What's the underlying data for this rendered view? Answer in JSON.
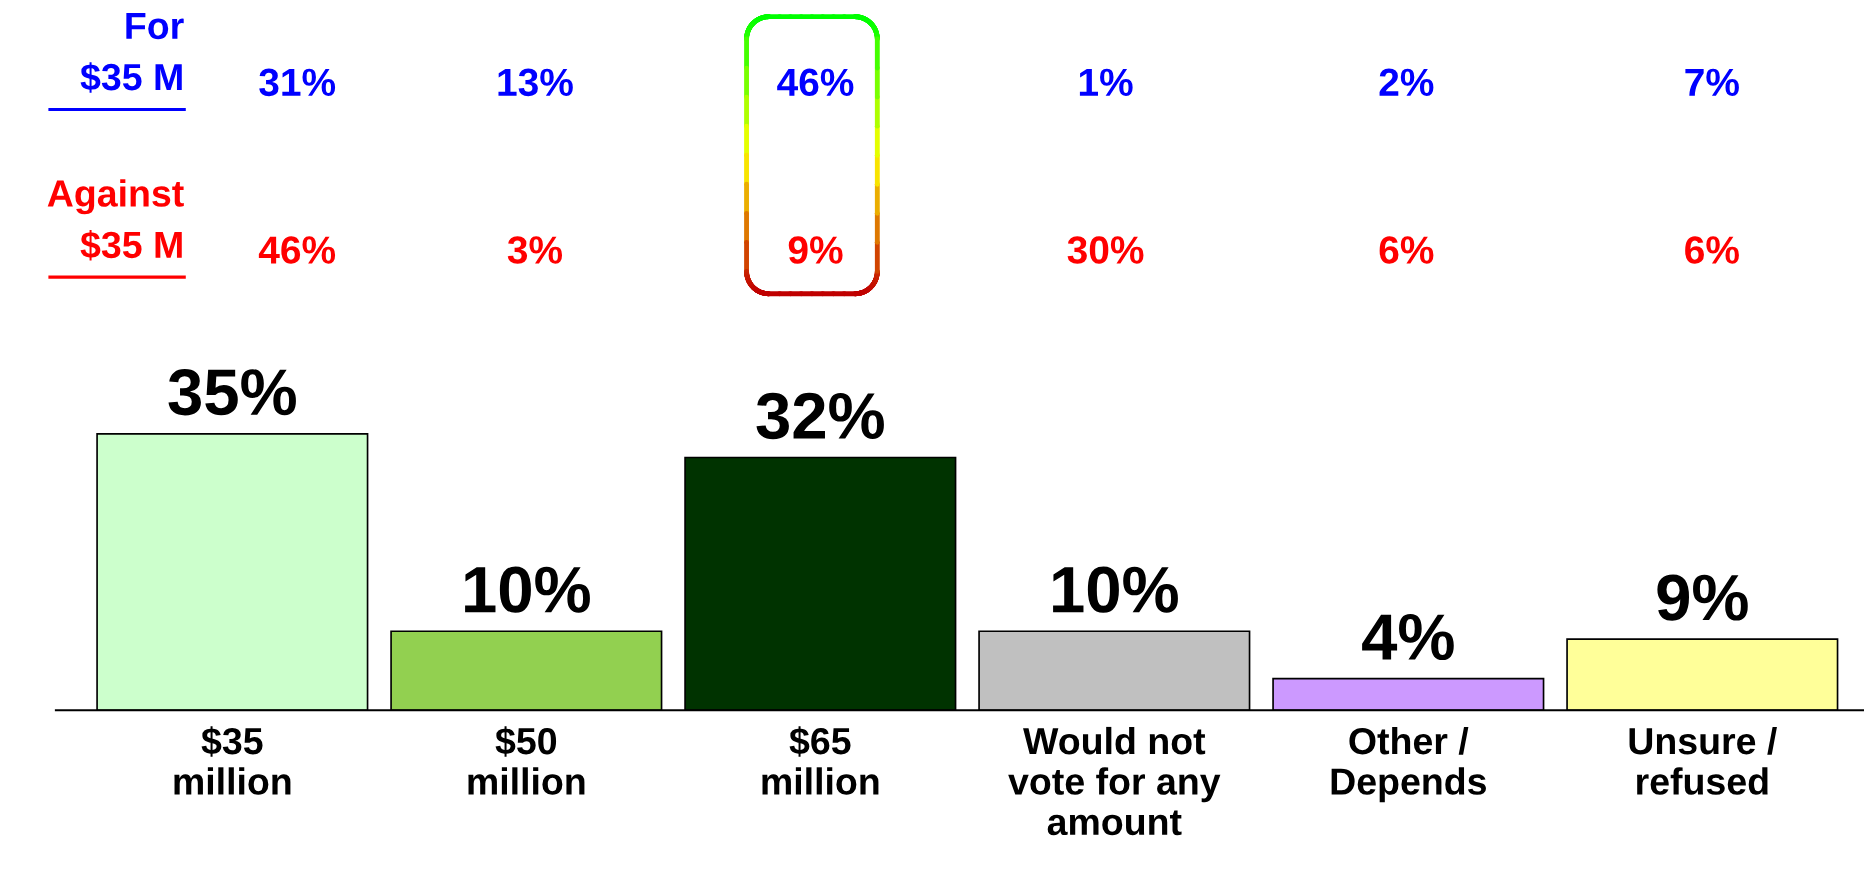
{
  "chart_data": {
    "type": "bar",
    "categories": [
      "$35\nmillion",
      "$50\nmillion",
      "$65\nmillion",
      "Would not\nvote for any\namount",
      "Other /\nDepends",
      "Unsure /\nrefused"
    ],
    "values": [
      35,
      10,
      32,
      10,
      4,
      9
    ],
    "colors": [
      "#ccffcc",
      "#92d050",
      "#003300",
      "#c0c0c0",
      "#cc99ff",
      "#ffff99"
    ],
    "value_labels": [
      "35%",
      "10%",
      "32%",
      "10%",
      "4%",
      "9%"
    ],
    "annotations": [
      "For\n$35 M",
      "31%",
      "13%",
      "46%",
      "1%",
      "2%",
      "7%",
      "Against\n$35 M",
      "46%",
      "3%",
      "9%",
      "30%",
      "6%",
      "6%"
    ]
  }
}
